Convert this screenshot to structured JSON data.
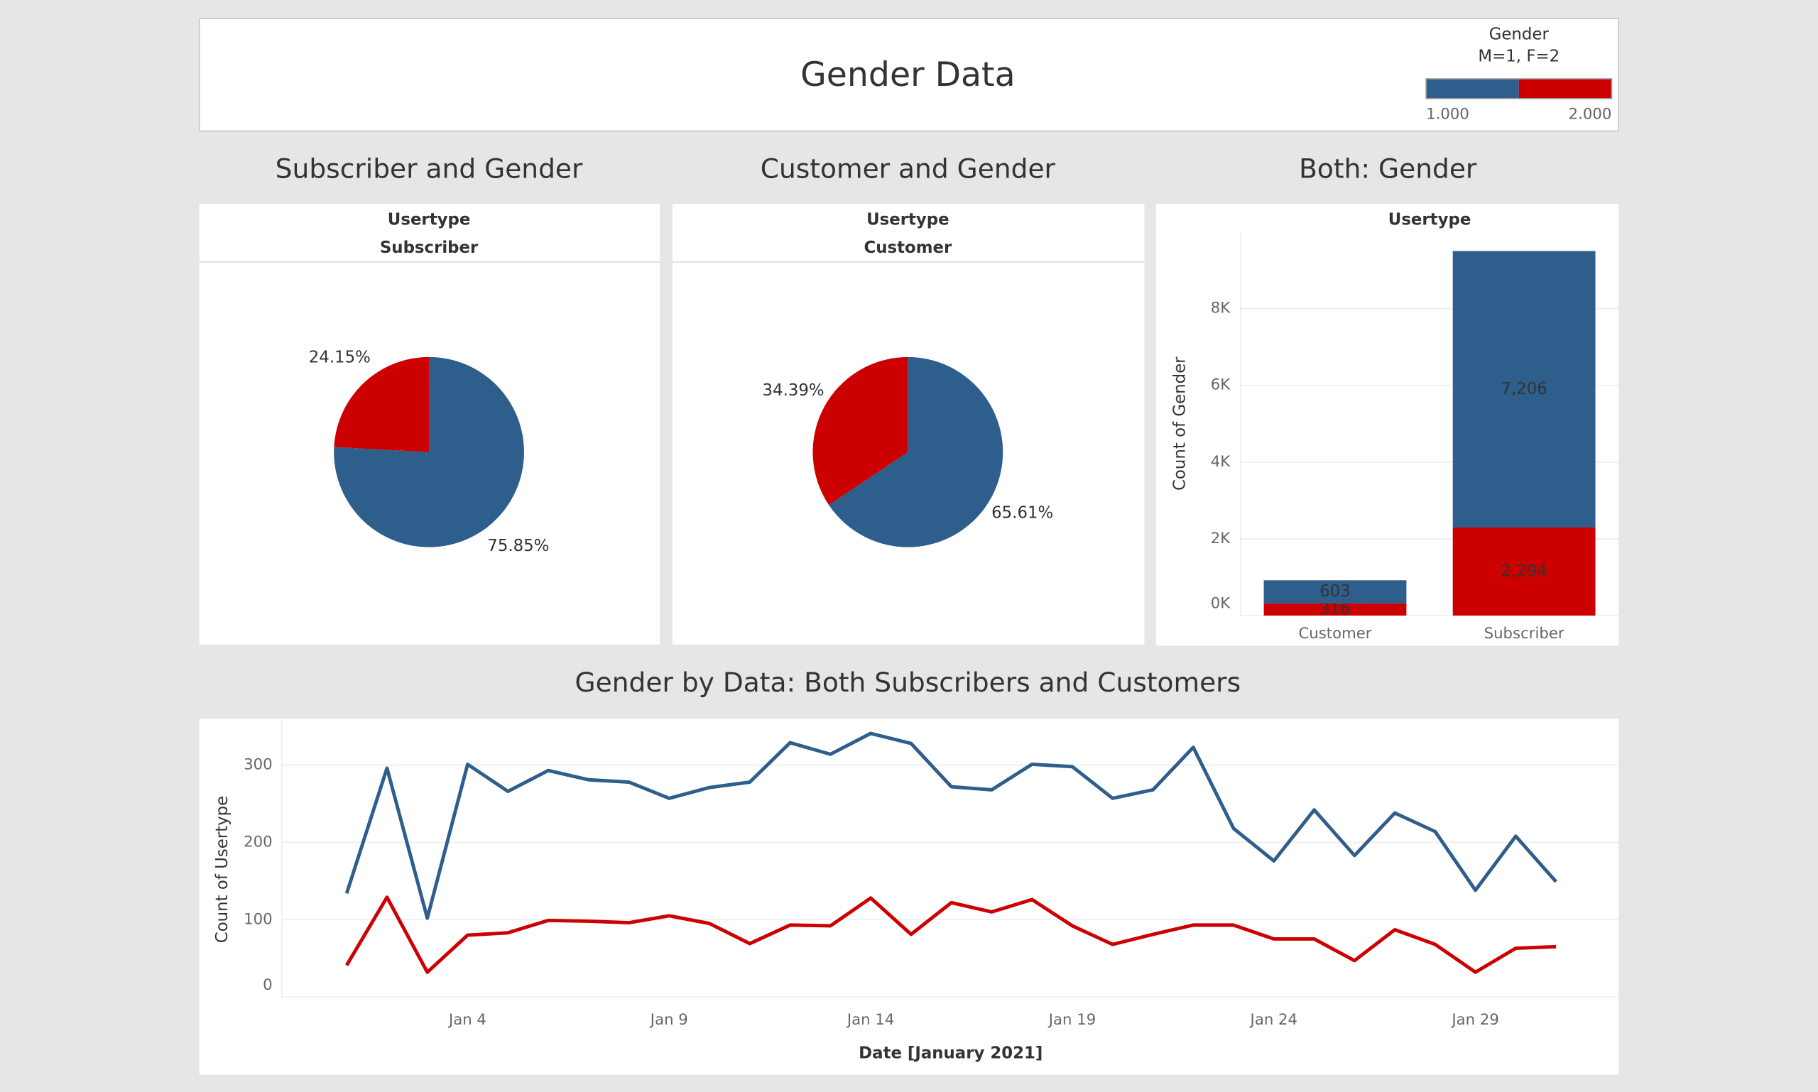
{
  "header": {
    "title": "Gender Data"
  },
  "legend": {
    "title": "Gender",
    "subtitle": "M=1, F=2",
    "colors": [
      "#2e5e8b",
      "#cc0000"
    ],
    "ticks": [
      {
        "value": 1,
        "label": "1.000"
      },
      {
        "value": 2,
        "label": "2.000"
      }
    ]
  },
  "chart_data": [
    {
      "type": "pie",
      "title": "Subscriber and Gender",
      "header": "Usertype",
      "subheader": "Subscriber",
      "values": [
        75.85,
        24.15
      ],
      "value_labels": [
        "75.85%",
        "24.15%"
      ],
      "colors": [
        "#2e5e8b",
        "#cc0000"
      ]
    },
    {
      "type": "pie",
      "title": "Customer and Gender",
      "header": "Usertype",
      "subheader": "Customer",
      "values": [
        65.61,
        34.39
      ],
      "value_labels": [
        "65.61%",
        "34.39%"
      ],
      "colors": [
        "#2e5e8b",
        "#cc0000"
      ]
    },
    {
      "type": "bar",
      "title": "Both: Gender",
      "header": "Usertype",
      "y_label": "Count of Gender",
      "categories": [
        "Customer",
        "Subscriber"
      ],
      "stacked": true,
      "series": [
        {
          "color": "#cc0000",
          "values": [
            316,
            2294
          ],
          "value_labels": [
            "316",
            "2,294"
          ]
        },
        {
          "color": "#2e5e8b",
          "values": [
            603,
            7206
          ],
          "value_labels": [
            "603",
            "7,206"
          ]
        }
      ],
      "ylim": [
        0,
        10000
      ],
      "yticks": [
        {
          "value": 0,
          "label": "0K"
        },
        {
          "value": 2000,
          "label": "2K"
        },
        {
          "value": 4000,
          "label": "4K"
        },
        {
          "value": 6000,
          "label": "6K"
        },
        {
          "value": 8000,
          "label": "8K"
        }
      ],
      "grid": true
    },
    {
      "type": "line",
      "title": "Gender by Data: Both Subscribers and Customers",
      "x_label": "Date [January 2021]",
      "y_label": "Count of Usertype",
      "x": [
        "Jan 1",
        "Jan 2",
        "Jan 3",
        "Jan 4",
        "Jan 5",
        "Jan 6",
        "Jan 7",
        "Jan 8",
        "Jan 9",
        "Jan 10",
        "Jan 11",
        "Jan 12",
        "Jan 13",
        "Jan 14",
        "Jan 15",
        "Jan 16",
        "Jan 17",
        "Jan 18",
        "Jan 19",
        "Jan 20",
        "Jan 21",
        "Jan 22",
        "Jan 23",
        "Jan 24",
        "Jan 25",
        "Jan 26",
        "Jan 27",
        "Jan 28",
        "Jan 29",
        "Jan 30",
        "Jan 31"
      ],
      "xticks": [
        "Jan 4",
        "Jan 9",
        "Jan 14",
        "Jan 19",
        "Jan 24",
        "Jan 29"
      ],
      "series": [
        {
          "color": "#2e5e8b",
          "values": [
            134,
            296,
            102,
            301,
            266,
            293,
            281,
            278,
            257,
            271,
            278,
            329,
            314,
            341,
            328,
            272,
            268,
            301,
            298,
            257,
            268,
            323,
            218,
            176,
            242,
            183,
            238,
            214,
            138,
            208,
            149
          ]
        },
        {
          "color": "#cc0000",
          "values": [
            41,
            129,
            32,
            80,
            83,
            99,
            98,
            96,
            105,
            95,
            69,
            93,
            92,
            128,
            81,
            122,
            110,
            126,
            92,
            68,
            81,
            93,
            93,
            75,
            75,
            47,
            87,
            68,
            32,
            63,
            65
          ]
        }
      ],
      "ylim": [
        0,
        360
      ],
      "yticks": [
        0,
        100,
        200,
        300
      ],
      "grid": true
    }
  ]
}
